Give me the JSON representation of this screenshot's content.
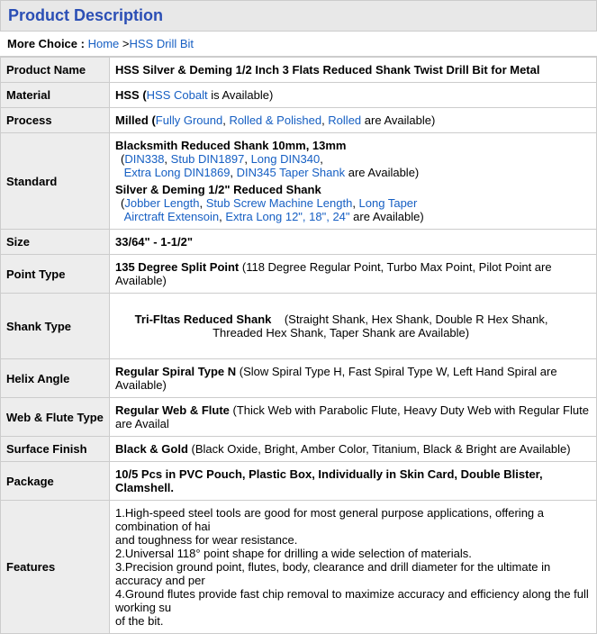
{
  "section_title": "Product Description",
  "more_choice": {
    "label": "More Choice :",
    "home": "Home",
    "link": "HSS Drill Bit",
    "separator": " >"
  },
  "rows": {
    "product_name": {
      "label": "Product Name",
      "value": "HSS Silver & Deming 1/2 Inch 3 Flats Reduced Shank Twist Drill Bit for Metal"
    },
    "material": {
      "label": "Material",
      "prefix": "HSS  (",
      "link1": "HSS Cobalt",
      "suffix": " is Available)"
    },
    "process": {
      "label": "Process",
      "prefix": "Milled  (",
      "link1": "Fully Ground",
      "link2": "Rolled & Polished",
      "link3": "Rolled",
      "suffix": " are Available)"
    },
    "standard": {
      "label": "Standard",
      "row1_prefix": "Blacksmith Reduced Shank 10mm, 13mm ",
      "row1_links": {
        "open": "(",
        "l1": "DIN338",
        "l2": "Stub DIN1897",
        "l3": "Long DIN340",
        "l4": "Extra Long DIN1869",
        "l5": "DIN345 Taper Shank",
        "tail": " are Available)"
      },
      "row2_prefix": "Silver & Deming 1/2\" Reduced Shank",
      "row2_links": {
        "open": "(",
        "l1": "Jobber Length",
        "l2": "Stub Screw Machine Length",
        "l3": "Long Taper",
        "l4": "Airctraft Extensoin",
        "l5": "Extra Long 12\", 18\", 24\"",
        "tail": " are Available)"
      }
    },
    "size": {
      "label": "Size",
      "value": "33/64\" - 1-1/2\""
    },
    "point_type": {
      "label": "Point Type",
      "bold": "135 Degree Split Point",
      "rest": "  (118 Degree Regular Point, Turbo Max Point, Pilot Point are Available)"
    },
    "shank_type": {
      "label": "Shank Type",
      "bold": "Tri-Fltas Reduced Shank",
      "line1": "    (Straight Shank, Hex Shank, Double R Hex Shank,",
      "line2": "                              Threaded Hex Shank, Taper Shank are Available)"
    },
    "helix_angle": {
      "label": "Helix Angle",
      "bold": "Regular Spiral Type N",
      "rest": "  (Slow Spiral Type H, Fast Spiral Type W, Left Hand Spiral are Available)"
    },
    "web_flute": {
      "label": "Web & Flute Type",
      "bold": "Regular Web & Flute",
      "rest": "  (Thick Web with Parabolic Flute, Heavy Duty Web with Regular Flute are Availal"
    },
    "surface_finish": {
      "label": "Surface Finish",
      "bold": "Black & Gold",
      "rest": "  (Black Oxide, Bright, Amber Color, Titanium, Black & Bright are Available)"
    },
    "package": {
      "label": "Package",
      "value": "10/5 Pcs in PVC Pouch, Plastic Box, Individually in Skin Card, Double Blister, Clamshell."
    },
    "features": {
      "label": "Features",
      "l1": "1.High-speed steel tools are good for most general purpose applications, offering a combination of hai",
      "l2": "and toughness for wear resistance.",
      "l3": "2.Universal 118° point shape for drilling a wide selection of materials.",
      "l4": "3.Precision ground point, flutes, body, clearance and drill diameter for the ultimate in accuracy and per",
      "l5": "4.Ground flutes provide fast chip removal to maximize accuracy and efficiency along the full working su",
      "l6": "of the bit."
    }
  }
}
